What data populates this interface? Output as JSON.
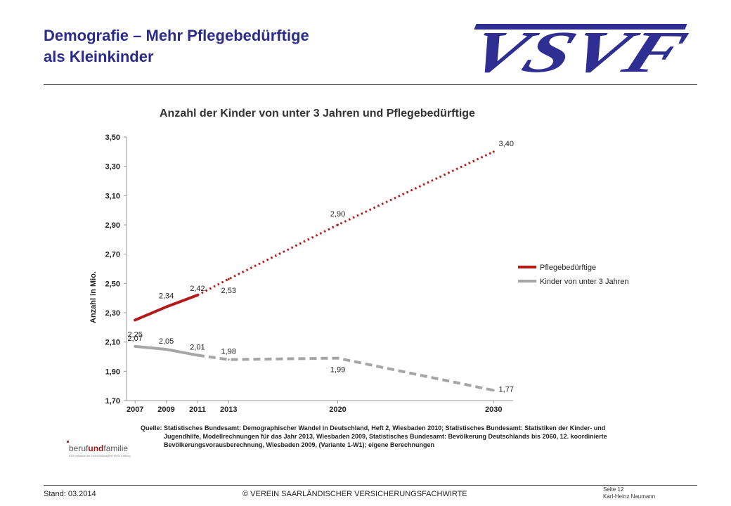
{
  "slide": {
    "title_line1": "Demografie – Mehr Pflegebedürftige",
    "title_line2": "als Kleinkinder",
    "logo_text": "VSVF"
  },
  "chart_data": {
    "type": "line",
    "title": "Anzahl der Kinder von unter 3 Jahren und Pflegebedürftige",
    "ylabel": "Anzahl in Mio.",
    "xlabel": "",
    "ylim": [
      1.7,
      3.5
    ],
    "y_ticks": [
      "1,70",
      "1,90",
      "2,10",
      "2,30",
      "2,50",
      "2,70",
      "2,90",
      "3,10",
      "3,30",
      "3,50"
    ],
    "x": [
      2007,
      2009,
      2011,
      2013,
      2020,
      2030
    ],
    "x_tick_labels": [
      "2007",
      "2009",
      "2011",
      "2013",
      "2020",
      "2030"
    ],
    "grid": false,
    "legend_position": "right",
    "series": [
      {
        "name": "Pflegebedürftige",
        "color": "#b31b1b",
        "values": [
          2.25,
          2.34,
          2.42,
          2.53,
          2.9,
          3.4
        ],
        "value_labels": [
          "2,25",
          "2,34",
          "2,42",
          "2,53",
          "2,90",
          "3,40"
        ],
        "style": "solid until 2011, dotted afterwards"
      },
      {
        "name": "Kinder von unter 3 Jahren",
        "color": "#a6a6a6",
        "values": [
          2.07,
          2.05,
          2.01,
          1.98,
          1.99,
          1.77
        ],
        "value_labels": [
          "2,07",
          "2,05",
          "2,01",
          "1,98",
          "1,99",
          "1,77"
        ],
        "style": "solid until 2011, dashed afterwards"
      }
    ]
  },
  "source": {
    "label": "Quelle:",
    "text": "Statistisches Bundesamt: Demographischer Wandel in Deutschland, Heft 2, Wiesbaden 2010; Statistisches Bundesamt: Statistiken der Kinder- und Jugendhilfe, Modellrechnungen für das Jahr 2013, Wiesbaden 2009, Statistisches Bundesamt: Bevölkerung Deutschlands bis 2060, 12. koordinierte Bevölkerungsvorausberechnung, Wiesbaden 2009, (Variante 1-W1); eigene Berechnungen"
  },
  "berufundfamilie": {
    "part1": "beruf",
    "part2": "und",
    "part3": "familie",
    "tagline": "Eine Initiative der Gemeinnützigen Hertie-Stiftung"
  },
  "footer": {
    "date": "Stand: 03.2014",
    "org": "© VEREIN SAARLÄNDISCHER VERSICHERUNGSFACHWIRTE",
    "page": "Seite 12",
    "author": "Karl-Heinz Naumann"
  }
}
